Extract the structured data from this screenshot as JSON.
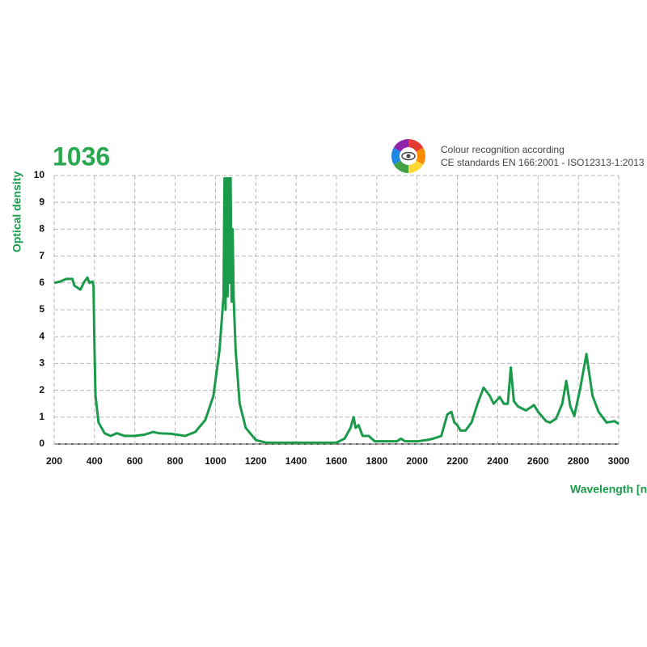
{
  "header": {
    "code": "1036",
    "note_line1": "Colour recognition according",
    "note_line2": "CE standards EN 166:2001 - ISO12313-1:2013"
  },
  "chart_data": {
    "type": "line",
    "x_label": "Wavelength [nm]",
    "y_label": "Optical density",
    "xlim": [
      200,
      3000
    ],
    "ylim": [
      0,
      10
    ],
    "xticks": [
      200,
      400,
      600,
      800,
      1000,
      1200,
      1400,
      1600,
      1800,
      2000,
      2200,
      2400,
      2600,
      2800,
      3000
    ],
    "yticks": [
      0,
      1,
      2,
      3,
      4,
      5,
      6,
      7,
      8,
      9,
      10
    ],
    "grid": true,
    "series": [
      {
        "color": "#1a9a4a",
        "x": [
          200,
          230,
          260,
          290,
          300,
          330,
          350,
          365,
          375,
          390,
          395,
          400,
          405,
          420,
          450,
          480,
          510,
          550,
          600,
          650,
          690,
          720,
          780,
          850,
          900,
          950,
          990,
          1020,
          1040,
          1045,
          1050,
          1055,
          1060,
          1065,
          1070,
          1075,
          1080,
          1085,
          1090,
          1100,
          1120,
          1150,
          1200,
          1250,
          1400,
          1600,
          1640,
          1670,
          1685,
          1695,
          1710,
          1730,
          1760,
          1790,
          1850,
          1900,
          1920,
          1940,
          2000,
          2050,
          2080,
          2120,
          2150,
          2170,
          2185,
          2200,
          2215,
          2240,
          2270,
          2300,
          2330,
          2360,
          2380,
          2410,
          2430,
          2450,
          2465,
          2480,
          2500,
          2540,
          2580,
          2600,
          2640,
          2660,
          2690,
          2720,
          2740,
          2760,
          2780,
          2810,
          2840,
          2870,
          2900,
          2940,
          2980,
          3000
        ],
        "values": [
          6.0,
          6.05,
          6.15,
          6.15,
          5.9,
          5.75,
          6.05,
          6.2,
          6.0,
          6.05,
          5.9,
          3.5,
          1.8,
          0.8,
          0.4,
          0.3,
          0.4,
          0.3,
          0.3,
          0.35,
          0.45,
          0.4,
          0.38,
          0.3,
          0.45,
          0.9,
          1.8,
          3.5,
          5.5,
          9.9,
          5.0,
          9.9,
          5.5,
          9.9,
          6.0,
          9.9,
          5.3,
          8.0,
          5.5,
          3.5,
          1.5,
          0.6,
          0.15,
          0.05,
          0.05,
          0.05,
          0.2,
          0.6,
          1.0,
          0.6,
          0.7,
          0.3,
          0.3,
          0.1,
          0.1,
          0.1,
          0.2,
          0.1,
          0.1,
          0.15,
          0.2,
          0.3,
          1.1,
          1.2,
          0.8,
          0.7,
          0.5,
          0.5,
          0.8,
          1.5,
          2.1,
          1.8,
          1.5,
          1.75,
          1.5,
          1.5,
          2.85,
          1.6,
          1.4,
          1.25,
          1.45,
          1.2,
          0.85,
          0.8,
          0.95,
          1.5,
          2.35,
          1.4,
          1.05,
          2.1,
          3.35,
          1.8,
          1.2,
          0.8,
          0.85,
          0.75
        ]
      }
    ]
  }
}
